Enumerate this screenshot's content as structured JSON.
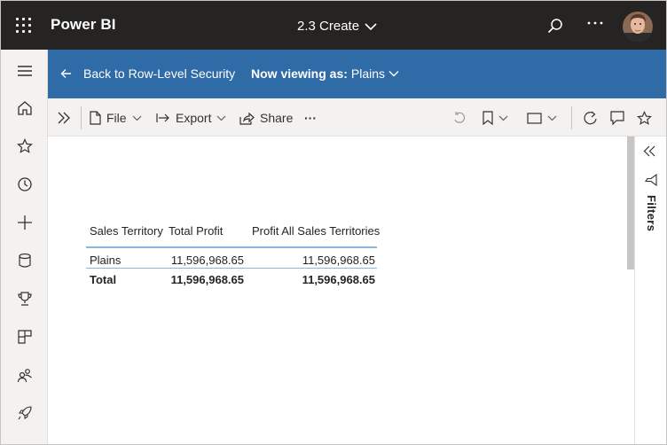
{
  "topbar": {
    "app_name": "Power BI",
    "report_title": "2.3 Create",
    "icons": [
      "app-launcher-icon",
      "search-icon",
      "more-icon",
      "avatar"
    ]
  },
  "leftnav": {
    "items": [
      {
        "name": "menu-icon"
      },
      {
        "name": "home-icon"
      },
      {
        "name": "favorites-icon"
      },
      {
        "name": "recent-icon"
      },
      {
        "name": "create-icon"
      },
      {
        "name": "datasets-icon"
      },
      {
        "name": "goals-icon"
      },
      {
        "name": "apps-icon"
      },
      {
        "name": "shared-icon"
      },
      {
        "name": "learn-icon"
      }
    ]
  },
  "banner": {
    "back_label": "Back to Row-Level Security",
    "viewing_prefix": "Now viewing as:",
    "viewing_role": "Plains"
  },
  "toolbar": {
    "file_label": "File",
    "export_label": "Export",
    "share_label": "Share",
    "more_label": "···"
  },
  "filters": {
    "label": "Filters"
  },
  "table": {
    "headers": [
      "Sales Territory",
      "Total Profit",
      "Profit All Sales Territories"
    ],
    "rows": [
      [
        "Plains",
        "11,596,968.65",
        "11,596,968.65"
      ]
    ],
    "total": [
      "Total",
      "11,596,968.65",
      "11,596,968.65"
    ]
  },
  "colors": {
    "topbar_bg": "#252423",
    "banner_bg": "#2f6ba6",
    "nav_bg": "#f3f2f1",
    "table_line": "#8ab5dc"
  }
}
